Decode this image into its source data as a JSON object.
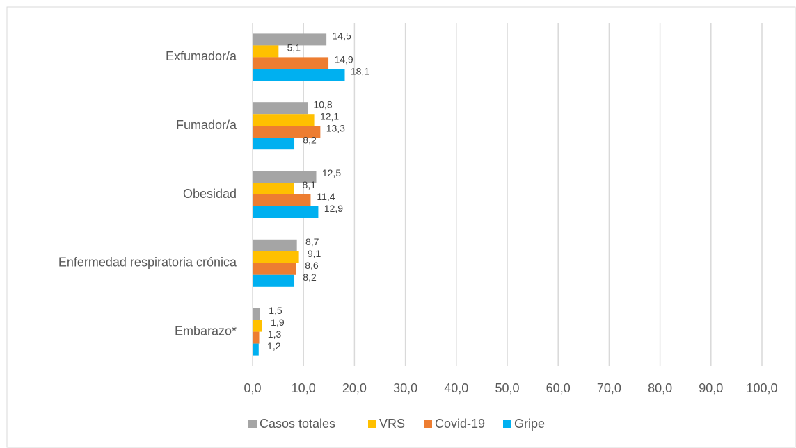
{
  "chart_data": {
    "type": "barh",
    "categories": [
      "Exfumador/a",
      "Fumador/a",
      "Obesidad",
      "Enfermedad respiratoria crónica",
      "Embarazo*"
    ],
    "series": [
      {
        "name": "Casos totales",
        "color": "#a5a5a5",
        "values": [
          14.5,
          10.8,
          12.5,
          8.7,
          1.5
        ],
        "value_labels": [
          "14,5",
          "10,8",
          "12,5",
          "8,7",
          "1,5"
        ]
      },
      {
        "name": "VRS",
        "color": "#ffc000",
        "values": [
          5.1,
          12.1,
          8.1,
          9.1,
          1.9
        ],
        "value_labels": [
          "5,1",
          "12,1",
          "8,1",
          "9,1",
          "1,9"
        ]
      },
      {
        "name": "Covid-19",
        "color": "#ed7d31",
        "values": [
          14.9,
          13.3,
          11.4,
          8.6,
          1.3
        ],
        "value_labels": [
          "14,9",
          "13,3",
          "11,4",
          "8,6",
          "1,3"
        ]
      },
      {
        "name": "Gripe",
        "color": "#00b0f0",
        "values": [
          18.1,
          8.2,
          12.9,
          8.2,
          1.2
        ],
        "value_labels": [
          "18,1",
          "8,2",
          "12,9",
          "8,2",
          "1,2"
        ]
      }
    ],
    "xlim": [
      0,
      100
    ],
    "xticks": [
      {
        "value": 0,
        "label": "0,0"
      },
      {
        "value": 10,
        "label": "10,0"
      },
      {
        "value": 20,
        "label": "20,0"
      },
      {
        "value": 30,
        "label": "30,0"
      },
      {
        "value": 40,
        "label": "40,0"
      },
      {
        "value": 50,
        "label": "50,0"
      },
      {
        "value": 60,
        "label": "60,0"
      },
      {
        "value": 70,
        "label": "70,0"
      },
      {
        "value": 80,
        "label": "80,0"
      },
      {
        "value": 90,
        "label": "90,0"
      },
      {
        "value": 100,
        "label": "100,0"
      }
    ],
    "grid": true,
    "legend": "bottom"
  }
}
